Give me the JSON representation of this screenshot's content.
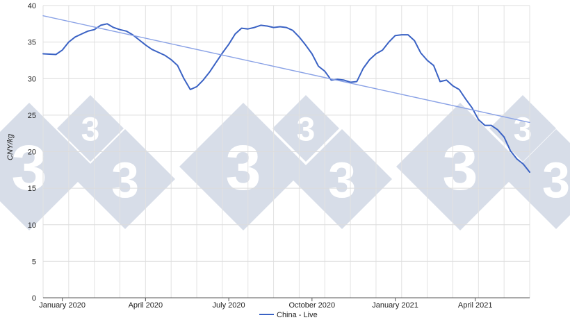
{
  "chart_data": {
    "type": "line",
    "ylabel": "CNY/kg",
    "ylim": [
      0,
      40
    ],
    "yticks": [
      0,
      5,
      10,
      15,
      20,
      25,
      30,
      35,
      40
    ],
    "xlim": [
      0,
      76
    ],
    "xticks": [
      {
        "x": 3,
        "label": "January 2020"
      },
      {
        "x": 16,
        "label": "April 2020"
      },
      {
        "x": 29,
        "label": "July 2020"
      },
      {
        "x": 42,
        "label": "October 2020"
      },
      {
        "x": 55,
        "label": "January 2021"
      },
      {
        "x": 67.5,
        "label": "April 2021"
      }
    ],
    "grid": true,
    "legend_position": "bottom",
    "series": [
      {
        "name": "China - Live",
        "color": "#3a62c4",
        "x": [
          0,
          2,
          3,
          4,
          5,
          6,
          7,
          8,
          9,
          10,
          11,
          12,
          13,
          14,
          15,
          16,
          17,
          18,
          19,
          20,
          21,
          22,
          23,
          24,
          25,
          26,
          27,
          28,
          29,
          30,
          31,
          32,
          33,
          34,
          35,
          36,
          37,
          38,
          39,
          40,
          41,
          42,
          43,
          44,
          45,
          46,
          47,
          48,
          49,
          50,
          51,
          52,
          53,
          54,
          55,
          56,
          57,
          58,
          59,
          60,
          61,
          62,
          63,
          64,
          65,
          66,
          67,
          68,
          69,
          70,
          71,
          72,
          73,
          74,
          75,
          76
        ],
        "values": [
          33.4,
          33.3,
          33.9,
          35.0,
          35.7,
          36.1,
          36.5,
          36.7,
          37.3,
          37.5,
          37.0,
          36.7,
          36.5,
          36.0,
          35.3,
          34.6,
          34.0,
          33.6,
          33.2,
          32.6,
          31.8,
          30.0,
          28.5,
          28.9,
          29.8,
          30.9,
          32.2,
          33.5,
          34.7,
          36.1,
          36.9,
          36.8,
          37.0,
          37.3,
          37.2,
          37.0,
          37.1,
          37.0,
          36.6,
          35.7,
          34.6,
          33.4,
          31.7,
          31.0,
          29.8,
          29.9,
          29.8,
          29.5,
          29.6,
          31.4,
          32.6,
          33.4,
          33.9,
          35.0,
          35.9,
          36.0,
          36.0,
          35.2,
          33.5,
          32.5,
          31.8,
          29.6,
          29.8,
          29.0,
          28.5,
          27.2,
          26.0,
          24.4,
          23.6,
          23.6,
          23.0,
          22.0,
          20.1,
          19.0,
          18.3,
          17.2
        ],
        "trend": false
      },
      {
        "name": "",
        "color": "#8aa2e6",
        "x": [
          0,
          76
        ],
        "values": [
          38.6,
          24.0
        ],
        "trend": true
      }
    ]
  }
}
